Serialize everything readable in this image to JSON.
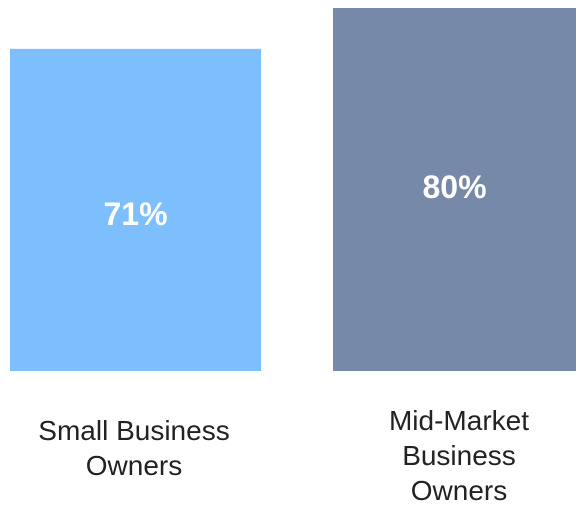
{
  "chart_data": {
    "type": "bar",
    "categories": [
      "Small Business Owners",
      "Mid-Market Business Owners"
    ],
    "category_label_lines": [
      [
        "Small Business",
        "Owners"
      ],
      [
        "Mid-Market",
        "Business",
        "Owners"
      ]
    ],
    "values": [
      71,
      80
    ],
    "value_labels": [
      "71%",
      "80%"
    ],
    "colors": [
      "#7dbffc",
      "#7789a9"
    ],
    "value_label_color": "#ffffff",
    "ylim": [
      0,
      80
    ],
    "grid": false,
    "title": "",
    "xlabel": "",
    "ylabel": ""
  }
}
